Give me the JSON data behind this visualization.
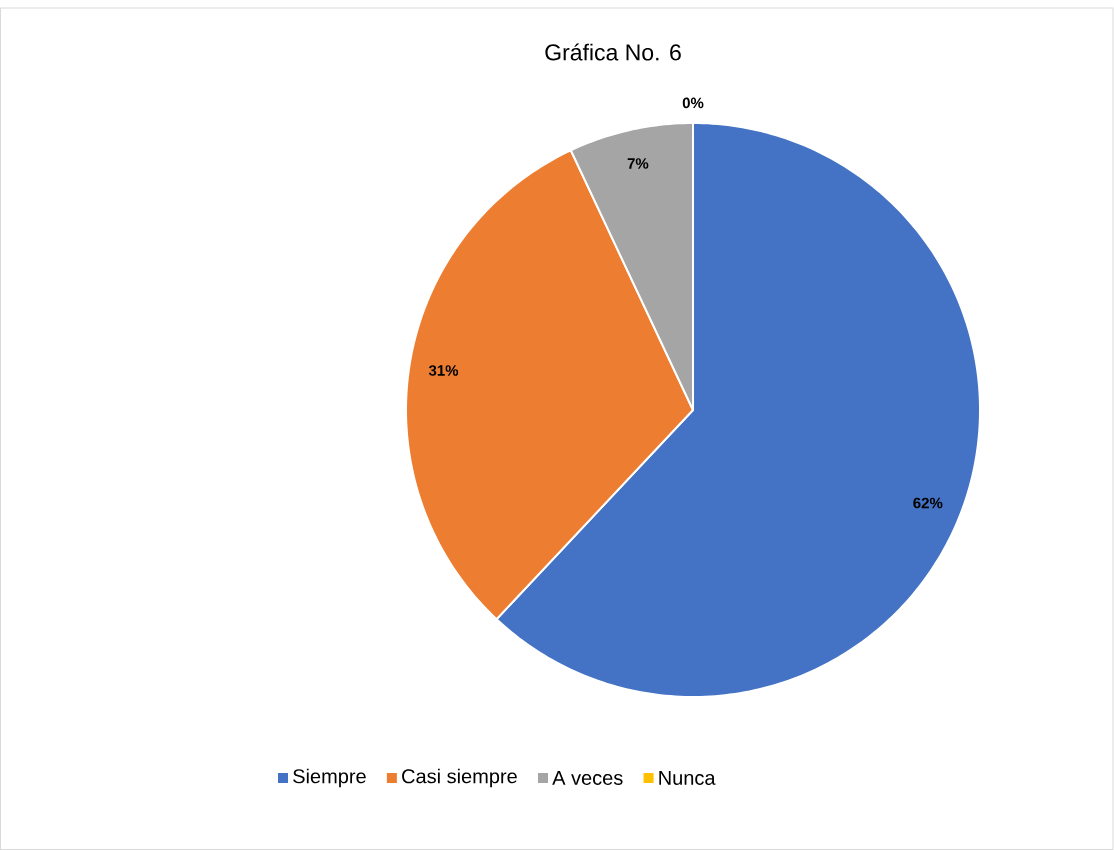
{
  "chart_data": {
    "type": "pie",
    "title": "Gráfica No. 6",
    "categories": [
      "Siempre",
      "Casi siempre",
      "A veces",
      "Nunca"
    ],
    "values": [
      62,
      31,
      7,
      0
    ],
    "colors": [
      "#4472c4",
      "#ed7d31",
      "#a5a5a5",
      "#ffc000"
    ],
    "value_labels": [
      "62%",
      "31%",
      "7%",
      "0%"
    ],
    "legend": "bottom"
  }
}
